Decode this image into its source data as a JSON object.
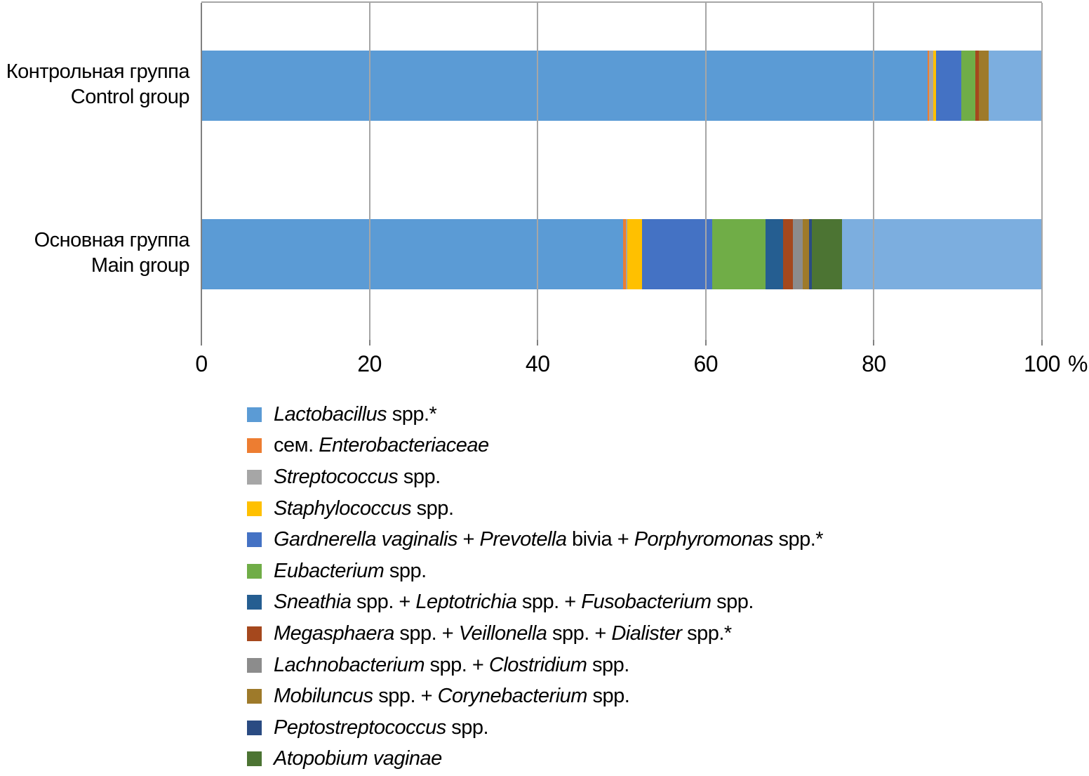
{
  "chart_data": {
    "type": "bar",
    "variant": "horizontal-stacked",
    "title": "",
    "xlabel": "",
    "ylabel": "",
    "x_axis": {
      "ticks": [
        0,
        20,
        40,
        60,
        80,
        100
      ],
      "lim": [
        0,
        100
      ],
      "unit_label": "%",
      "grid": true
    },
    "legend_position": "bottom-left",
    "categories": [
      {
        "ru": "Контрольная группа",
        "en": "Control group"
      },
      {
        "ru": "Основная группа",
        "en": "Main group"
      }
    ],
    "series": [
      {
        "label": "Lactobacillus spp.*",
        "label_parts": [
          {
            "t": "Lactobacillus",
            "i": true
          },
          {
            "t": " spp.*",
            "i": false
          }
        ],
        "color": "#5B9BD5",
        "in_legend": true,
        "values": [
          86.4,
          50.2
        ]
      },
      {
        "label": "сем. Enterobacteriaceae",
        "label_parts": [
          {
            "t": "сем. ",
            "i": false
          },
          {
            "t": "Enterobacteriaceae",
            "i": true
          }
        ],
        "color": "#ED7D31",
        "in_legend": true,
        "values": [
          0.2,
          0.3
        ]
      },
      {
        "label": "Streptococcus spp.",
        "label_parts": [
          {
            "t": "Streptococcus",
            "i": true
          },
          {
            "t": " spp.",
            "i": false
          }
        ],
        "color": "#A6A6A6",
        "in_legend": true,
        "values": [
          0.5,
          0.2
        ]
      },
      {
        "label": "Staphylococcus spp.",
        "label_parts": [
          {
            "t": "Staphylococcus",
            "i": true
          },
          {
            "t": " spp.",
            "i": false
          }
        ],
        "color": "#FFC000",
        "in_legend": true,
        "values": [
          0.3,
          1.7
        ]
      },
      {
        "label": "Gardnerella vaginalis + Prevotella bivia + Porphyromonas spp.*",
        "label_parts": [
          {
            "t": "Gardnerella vaginalis",
            "i": true
          },
          {
            "t": " + ",
            "i": false
          },
          {
            "t": "Prevotella",
            "i": true
          },
          {
            "t": " bivia + ",
            "i": false
          },
          {
            "t": "Porphyromonas",
            "i": true
          },
          {
            "t": " spp.*",
            "i": false
          }
        ],
        "color": "#4472C4",
        "in_legend": true,
        "values": [
          3.0,
          8.4
        ]
      },
      {
        "label": "Eubacterium spp.",
        "label_parts": [
          {
            "t": "Eubacterium",
            "i": true
          },
          {
            "t": " spp.",
            "i": false
          }
        ],
        "color": "#70AD47",
        "in_legend": true,
        "values": [
          1.7,
          6.3
        ]
      },
      {
        "label": "Sneathia spp. + Leptotrichia spp. + Fusobacterium spp.",
        "label_parts": [
          {
            "t": "Sneathia",
            "i": true
          },
          {
            "t": " spp. + ",
            "i": false
          },
          {
            "t": "Leptotrichia",
            "i": true
          },
          {
            "t": " spp. + ",
            "i": false
          },
          {
            "t": "Fusobacterium",
            "i": true
          },
          {
            "t": " spp.",
            "i": false
          }
        ],
        "color": "#255E91",
        "in_legend": true,
        "values": [
          0,
          2.1
        ]
      },
      {
        "label": "Megasphaera spp. + Veillonella spp. + Dialister spp.*",
        "label_parts": [
          {
            "t": "Megasphaera",
            "i": true
          },
          {
            "t": " spp. + ",
            "i": false
          },
          {
            "t": "Veillonella",
            "i": true
          },
          {
            "t": " spp. + ",
            "i": false
          },
          {
            "t": "Dialister",
            "i": true
          },
          {
            "t": " spp.*",
            "i": false
          }
        ],
        "color": "#A5481D",
        "in_legend": true,
        "values": [
          0.4,
          1.2
        ]
      },
      {
        "label": "Lachnobacterium spp. + Clostridium spp.",
        "label_parts": [
          {
            "t": "Lachnobacterium",
            "i": true
          },
          {
            "t": " spp. + ",
            "i": false
          },
          {
            "t": "Clostridium",
            "i": true
          },
          {
            "t": " spp.",
            "i": false
          }
        ],
        "color": "#8C8C8C",
        "in_legend": true,
        "values": [
          0,
          1.1
        ]
      },
      {
        "label": "Mobiluncus spp. + Corynebacterium spp.",
        "label_parts": [
          {
            "t": "Mobiluncus",
            "i": true
          },
          {
            "t": " spp. + ",
            "i": false
          },
          {
            "t": "Corynebacterium",
            "i": true
          },
          {
            "t": " spp.",
            "i": false
          }
        ],
        "color": "#9E7A2A",
        "in_legend": true,
        "values": [
          1.2,
          0.8
        ]
      },
      {
        "label": "Peptostreptococcus spp.",
        "label_parts": [
          {
            "t": "Peptostreptococcus",
            "i": true
          },
          {
            "t": " spp.",
            "i": false
          }
        ],
        "color": "#2A4B82",
        "in_legend": true,
        "values": [
          0,
          0.3
        ]
      },
      {
        "label": "Atopobium vaginae",
        "label_parts": [
          {
            "t": "Atopobium vaginae",
            "i": true
          }
        ],
        "color": "#4C7433",
        "in_legend": true,
        "values": [
          0,
          3.6
        ]
      },
      {
        "label": "",
        "label_parts": [],
        "color": "#7CAEDF",
        "in_legend": false,
        "values": [
          6.3,
          23.8
        ]
      }
    ]
  }
}
